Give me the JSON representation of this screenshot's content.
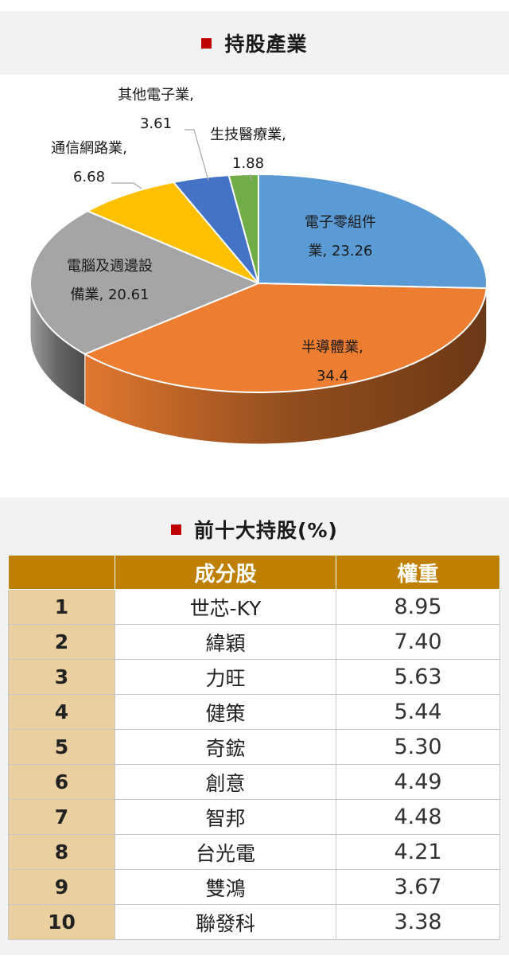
{
  "chart_section": {
    "title": "持股產業"
  },
  "chart_data": {
    "type": "pie",
    "title": "持股產業",
    "slices": [
      {
        "name": "電子零組件業",
        "value": 23.26,
        "color": "#5b9bd5",
        "label_lines": [
          "電子零組件",
          "業, 23.26"
        ]
      },
      {
        "name": "半導體業",
        "value": 34.4,
        "color": "#ed7d31",
        "label_lines": [
          "半導體業,",
          "34.4"
        ]
      },
      {
        "name": "電腦及週邊設備業",
        "value": 20.61,
        "color": "#a5a5a5",
        "label_lines": [
          "電腦及週邊設",
          "備業, 20.61"
        ]
      },
      {
        "name": "通信網路業",
        "value": 6.68,
        "color": "#ffc000",
        "label_lines": [
          "通信網路業,",
          "6.68"
        ]
      },
      {
        "name": "其他電子業",
        "value": 3.61,
        "color": "#4472c4",
        "label_lines": [
          "其他電子業,",
          "3.61"
        ]
      },
      {
        "name": "生技醫療業",
        "value": 1.88,
        "color": "#70ad47",
        "label_lines": [
          "生技醫療業,",
          "1.88"
        ]
      }
    ]
  },
  "table_section": {
    "title": "前十大持股(%)",
    "headers": [
      "",
      "成分股",
      "權重"
    ],
    "rows": [
      {
        "rank": "1",
        "name": "世芯-KY",
        "weight": "8.95"
      },
      {
        "rank": "2",
        "name": "緯穎",
        "weight": "7.40"
      },
      {
        "rank": "3",
        "name": "力旺",
        "weight": "5.63"
      },
      {
        "rank": "4",
        "name": "健策",
        "weight": "5.44"
      },
      {
        "rank": "5",
        "name": "奇鋐",
        "weight": "5.30"
      },
      {
        "rank": "6",
        "name": "創意",
        "weight": "4.49"
      },
      {
        "rank": "7",
        "name": "智邦",
        "weight": "4.48"
      },
      {
        "rank": "8",
        "name": "台光電",
        "weight": "4.21"
      },
      {
        "rank": "9",
        "name": "雙鴻",
        "weight": "3.67"
      },
      {
        "rank": "10",
        "name": "聯發科",
        "weight": "3.38"
      }
    ]
  }
}
